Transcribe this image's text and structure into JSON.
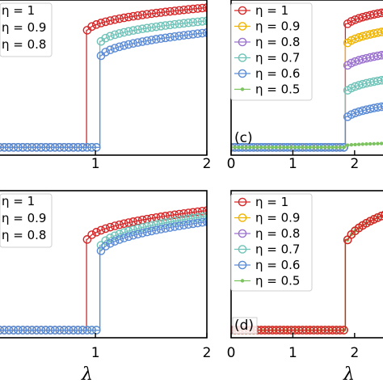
{
  "chart_data": [
    {
      "type": "line",
      "panel_label": "",
      "xlabel": "λ",
      "xlim": [
        0,
        2
      ],
      "xticks": [
        "1",
        "2"
      ],
      "legend": "top-left",
      "legend_labels": [
        "η = 1",
        "η = 0.9",
        "η = 0.8"
      ],
      "series": [
        {
          "name": "η = 1",
          "color": "#d62728",
          "marker": "circle",
          "transition": 0.92,
          "low": 0.02,
          "high_start": 0.8,
          "high_end": 0.97
        },
        {
          "name": "η = 0.9",
          "color": "#6fc3b8",
          "marker": "circle",
          "transition": 1.04,
          "low": 0.02,
          "high_start": 0.72,
          "high_end": 0.88
        },
        {
          "name": "η = 0.8",
          "color": "#5b8bd6",
          "marker": "circle",
          "transition": 1.04,
          "low": 0.02,
          "high_start": 0.62,
          "high_end": 0.8
        }
      ]
    },
    {
      "type": "line",
      "panel_label": "(c)",
      "xlabel": "",
      "xlim": [
        0,
        2.6
      ],
      "xticks": [
        "0",
        "1",
        "2"
      ],
      "legend": "top-left",
      "legend_labels": [
        "η = 1",
        "η = 0.9",
        "η = 0.8",
        "η = 0.7",
        "η = 0.6",
        "η = 0.5"
      ],
      "series": [
        {
          "name": "η = 1",
          "color": "#d62728",
          "marker": "circle",
          "transition": 1.85,
          "low": 0.02,
          "high_start": 0.83,
          "high_end": 0.96
        },
        {
          "name": "η = 0.9",
          "color": "#f0b400",
          "marker": "circle",
          "transition": 1.85,
          "low": 0.02,
          "high_start": 0.7,
          "high_end": 0.83
        },
        {
          "name": "η = 0.8",
          "color": "#9b72cf",
          "marker": "circle",
          "transition": 1.85,
          "low": 0.02,
          "high_start": 0.55,
          "high_end": 0.67
        },
        {
          "name": "η = 0.7",
          "color": "#6fc3b8",
          "marker": "circle",
          "transition": 1.85,
          "low": 0.02,
          "high_start": 0.38,
          "high_end": 0.5
        },
        {
          "name": "η = 0.6",
          "color": "#5b8bd6",
          "marker": "circle",
          "transition": 1.85,
          "low": 0.02,
          "high_start": 0.2,
          "high_end": 0.32
        },
        {
          "name": "η = 0.5",
          "color": "#7cc35f",
          "marker": "dot",
          "transition": 1.85,
          "low": 0.02,
          "high_start": 0.03,
          "high_end": 0.05
        }
      ]
    },
    {
      "type": "line",
      "panel_label": "",
      "xlabel": "λ",
      "xlim": [
        0,
        2
      ],
      "xticks": [
        "1",
        "2"
      ],
      "legend": "top-left",
      "legend_labels": [
        "η = 1",
        "η = 0.9",
        "η = 0.8"
      ],
      "series": [
        {
          "name": "η = 1",
          "color": "#d62728",
          "marker": "circle",
          "transition": 0.92,
          "low": 0.02,
          "high_start": 0.65,
          "high_end": 0.88
        },
        {
          "name": "η = 0.9",
          "color": "#6fc3b8",
          "marker": "circle",
          "transition": 1.04,
          "low": 0.02,
          "high_start": 0.6,
          "high_end": 0.84
        },
        {
          "name": "η = 0.8",
          "color": "#5b8bd6",
          "marker": "circle",
          "transition": 1.04,
          "low": 0.02,
          "high_start": 0.56,
          "high_end": 0.8
        }
      ]
    },
    {
      "type": "line",
      "panel_label": "(d)",
      "xlabel": "λ",
      "xlim": [
        0,
        2.6
      ],
      "xticks": [
        "0",
        "1",
        "2"
      ],
      "legend": "top-left",
      "legend_labels": [
        "η = 1",
        "η = 0.9",
        "η = 0.8",
        "η = 0.7",
        "η = 0.6",
        "η = 0.5"
      ],
      "series": [
        {
          "name": "η = 0.5",
          "color": "#7cc35f",
          "marker": "dot",
          "transition": 1.85,
          "low": 0.02,
          "high_start": 0.6,
          "high_end": 0.9
        },
        {
          "name": "η = 0.6",
          "color": "#5b8bd6",
          "marker": "circle",
          "transition": 1.85,
          "low": 0.02,
          "high_start": 0.6,
          "high_end": 0.9
        },
        {
          "name": "η = 0.7",
          "color": "#6fc3b8",
          "marker": "circle",
          "transition": 1.85,
          "low": 0.02,
          "high_start": 0.6,
          "high_end": 0.9
        },
        {
          "name": "η = 0.8",
          "color": "#9b72cf",
          "marker": "circle",
          "transition": 1.85,
          "low": 0.02,
          "high_start": 0.6,
          "high_end": 0.9
        },
        {
          "name": "η = 0.9",
          "color": "#f0b400",
          "marker": "circle",
          "transition": 1.85,
          "low": 0.02,
          "high_start": 0.6,
          "high_end": 0.9
        },
        {
          "name": "η = 1",
          "color": "#d62728",
          "marker": "circle",
          "transition": 1.85,
          "low": 0.02,
          "high_start": 0.6,
          "high_end": 0.9
        }
      ]
    }
  ]
}
